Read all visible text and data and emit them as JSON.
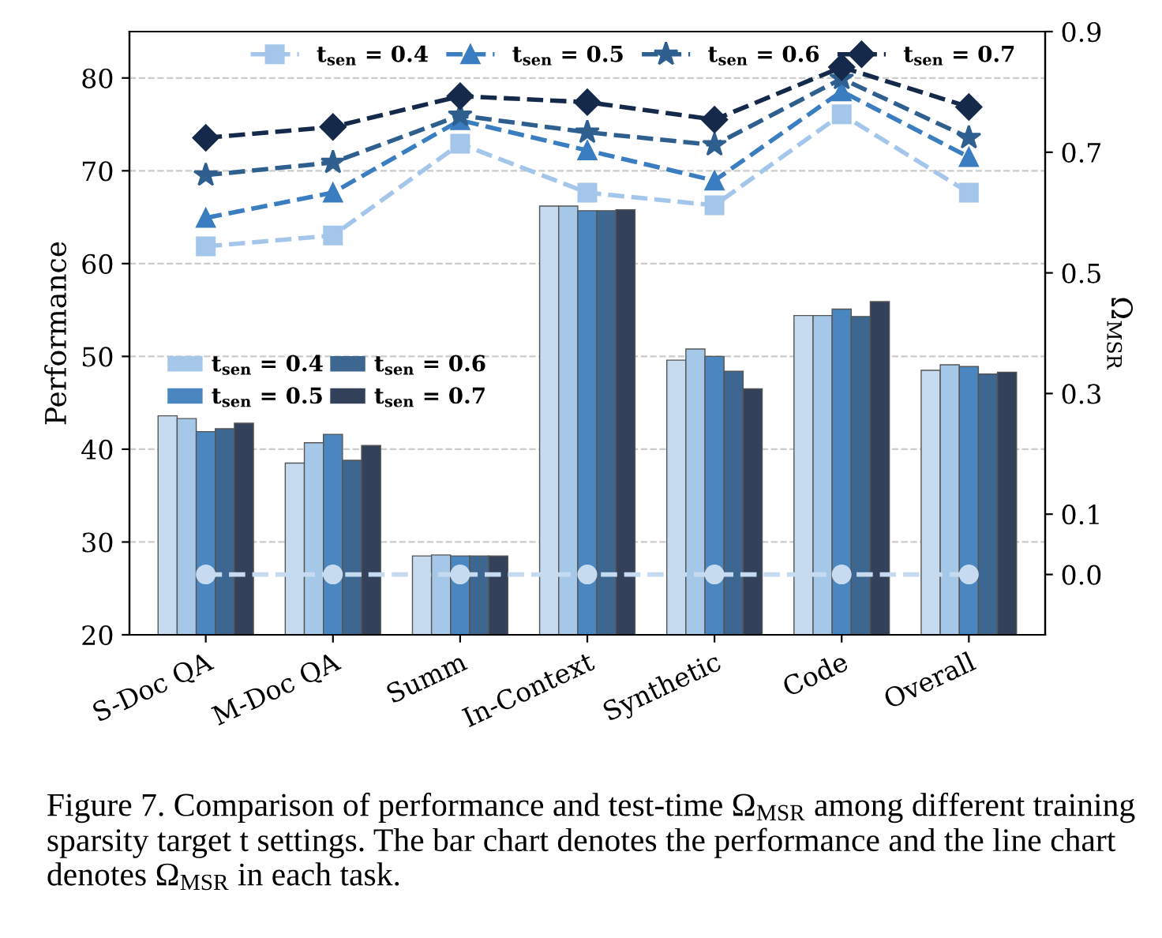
{
  "chart_data": {
    "type": "bar",
    "categories": [
      "S-Doc QA",
      "M-Doc QA",
      "Summ",
      "In-Context",
      "Synthetic",
      "Code",
      "Overall"
    ],
    "ylabel": "Performance",
    "y2label": "Ω$_{MSR}$",
    "ylim": [
      20,
      85
    ],
    "yticks": [
      20,
      30,
      40,
      50,
      60,
      70,
      80
    ],
    "y2lim": [
      -0.1,
      0.9
    ],
    "y2ticks": [
      {
        "value": 0,
        "label": "0.0"
      },
      0.1,
      0.3,
      0.5,
      0.7,
      0.9
    ],
    "grid": "y",
    "legend": "top",
    "series": [
      {
        "color": "#c6dbef",
        "values": [
          43.6,
          38.5,
          28.5,
          66.2,
          49.6,
          54.4,
          48.5
        ]
      },
      {
        "name": "t$_{sen}$ = 0.4",
        "color": "#a6c8e8",
        "values": [
          43.3,
          40.7,
          28.6,
          66.2,
          50.8,
          54.4,
          49.1
        ]
      },
      {
        "name": "t$_{sen}$ = 0.5",
        "color": "#4a86c0",
        "values": [
          41.9,
          41.6,
          28.5,
          65.7,
          50.0,
          55.1,
          48.9
        ]
      },
      {
        "name": "t$_{sen}$ = 0.6",
        "color": "#3d6690",
        "values": [
          42.2,
          38.8,
          28.5,
          65.7,
          48.4,
          54.3,
          48.1
        ]
      },
      {
        "name": "t$_{sen}$ = 0.7",
        "color": "#33425a",
        "values": [
          42.8,
          40.4,
          28.5,
          65.8,
          46.5,
          55.9,
          48.3
        ]
      },
      {
        "type": "line",
        "axis": "y2",
        "marker": "circle",
        "line_style": "dashed",
        "color": "#c6dbef",
        "values": [
          0.0,
          0.0,
          0.0,
          0.0,
          0.0,
          0.0,
          0.0
        ]
      },
      {
        "type": "line",
        "axis": "y2",
        "marker": "square",
        "line_style": "dashed",
        "name": "t$_{sen}$ = 0.4",
        "color": "#a3c6ea",
        "values": [
          0.544,
          0.562,
          0.714,
          0.633,
          0.612,
          0.763,
          0.633
        ]
      },
      {
        "type": "line",
        "axis": "y2",
        "marker": "triangle",
        "line_style": "dashed",
        "name": "t$_{sen}$ = 0.5",
        "color": "#3a7dc0",
        "values": [
          0.591,
          0.633,
          0.753,
          0.703,
          0.653,
          0.801,
          0.692
        ]
      },
      {
        "type": "line",
        "axis": "y2",
        "marker": "star",
        "line_style": "dashed",
        "name": "t$_{sen}$ = 0.6",
        "color": "#2e5f8f",
        "values": [
          0.662,
          0.683,
          0.761,
          0.733,
          0.712,
          0.822,
          0.724
        ]
      },
      {
        "type": "line",
        "axis": "y2",
        "marker": "diamond",
        "line_style": "dashed",
        "name": "t$_{sen}$ = 0.7",
        "color": "#15294a",
        "values": [
          0.724,
          0.742,
          0.793,
          0.783,
          0.754,
          0.841,
          0.775
        ]
      }
    ],
    "annotations": [
      "Figure 7. Comparison of performance and test-time Ω$_{MSR}$ among different training sparsity target t settings. The bar chart denotes the performance and the line chart denotes Ω$_{MSR}$ in each task."
    ]
  }
}
